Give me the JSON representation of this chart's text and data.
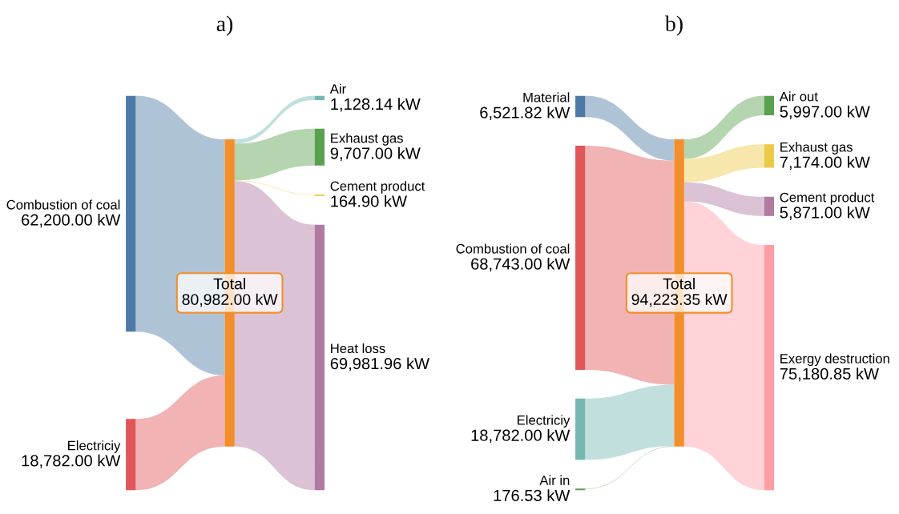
{
  "chart_data": [
    {
      "type": "other",
      "title": "a)",
      "categories": [
        "Combustion of coal",
        "Electriciy",
        "Total",
        "Air",
        "Exhaust gas",
        "Cement product",
        "Heat loss"
      ],
      "colors": [
        "#4e79a7",
        "#e15759",
        "#f28e2b",
        "#76b7b2",
        "#59a14f",
        "#edc948",
        "#b07aa1"
      ],
      "series": [
        {
          "values": [
            62200.0,
            18782.0,
            null,
            null,
            null,
            null,
            null
          ],
          "value_labels": [
            "62,200.00 kW",
            "18,782.00 kW",
            null,
            null,
            null,
            null,
            null
          ]
        },
        {
          "values": [
            null,
            null,
            80982.0,
            null,
            null,
            null,
            null
          ],
          "value_labels": [
            null,
            null,
            "80,982.00 kW",
            null,
            null,
            null,
            null
          ]
        },
        {
          "values": [
            null,
            null,
            null,
            1128.14,
            9707.0,
            164.9,
            69981.96
          ],
          "value_labels": [
            null,
            null,
            null,
            "1,128.14 kW",
            "9,707.00 kW",
            "164.90 kW",
            "69,981.96 kW"
          ]
        }
      ]
    },
    {
      "type": "other",
      "title": "b)",
      "categories": [
        "Material",
        "Combustion of coal",
        "Electriciy",
        "Air in",
        "Total",
        "Air out",
        "Exhaust gas",
        "Cement product",
        "Exergy destruction"
      ],
      "colors": [
        "#4e79a7",
        "#e15759",
        "#76b7b2",
        "#59a14f",
        "#f28e2b",
        "#59a14f",
        "#edc948",
        "#b07aa1",
        "#ff9da7"
      ],
      "series": [
        {
          "values": [
            6521.82,
            68743.0,
            18782.0,
            176.53,
            null,
            null,
            null,
            null,
            null
          ],
          "value_labels": [
            "6,521.82 kW",
            "68,743.00 kW",
            "18,782.00 kW",
            "176.53 kW",
            null,
            null,
            null,
            null,
            null
          ]
        },
        {
          "values": [
            null,
            null,
            null,
            null,
            94223.35,
            null,
            null,
            null,
            null
          ],
          "value_labels": [
            null,
            null,
            null,
            null,
            "94,223.35 kW",
            null,
            null,
            null,
            null
          ]
        },
        {
          "values": [
            null,
            null,
            null,
            null,
            null,
            5997.0,
            7174.0,
            5871.0,
            75180.85
          ],
          "value_labels": [
            null,
            null,
            null,
            null,
            null,
            "5,997.00 kW",
            "7,174.00 kW",
            "5,871.00 kW",
            "75,180.85 kW"
          ]
        }
      ]
    }
  ]
}
